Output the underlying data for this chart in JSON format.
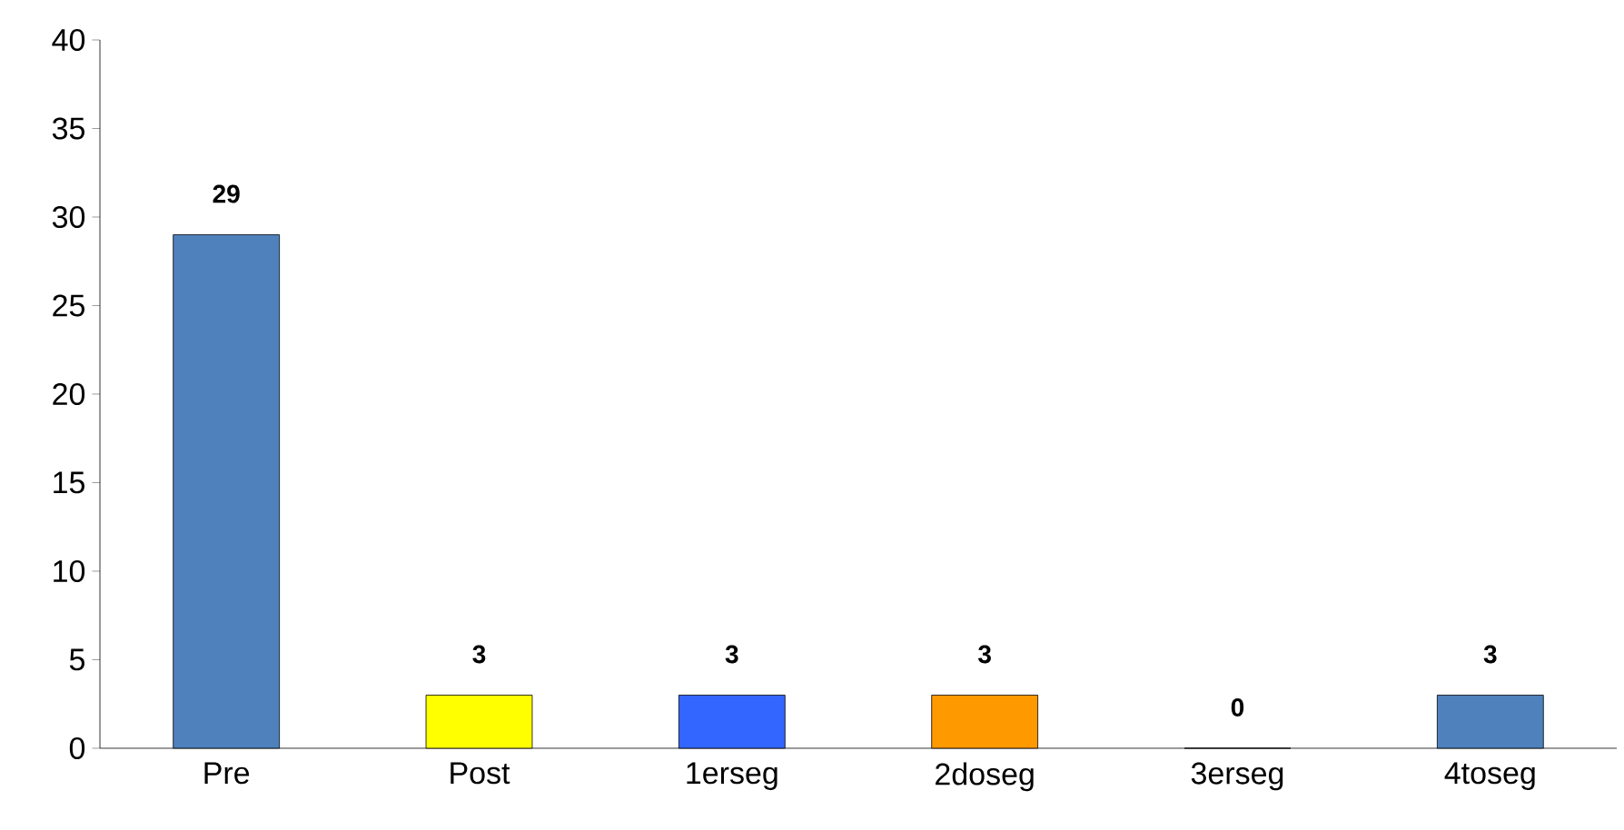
{
  "chart_data": {
    "type": "bar",
    "categories": [
      "Pre",
      "Post",
      "1erseg",
      "2doseg",
      "3erseg",
      "4toseg"
    ],
    "values": [
      29,
      3,
      3,
      3,
      0,
      3
    ],
    "colors": [
      "#4f81bd",
      "#ffff00",
      "#3366ff",
      "#ff9900",
      "#1f4e8c",
      "#4f81bd"
    ],
    "ylim": [
      0,
      40
    ],
    "yticks": [
      0,
      5,
      10,
      15,
      20,
      25,
      30,
      35,
      40
    ],
    "data_labels": true
  }
}
